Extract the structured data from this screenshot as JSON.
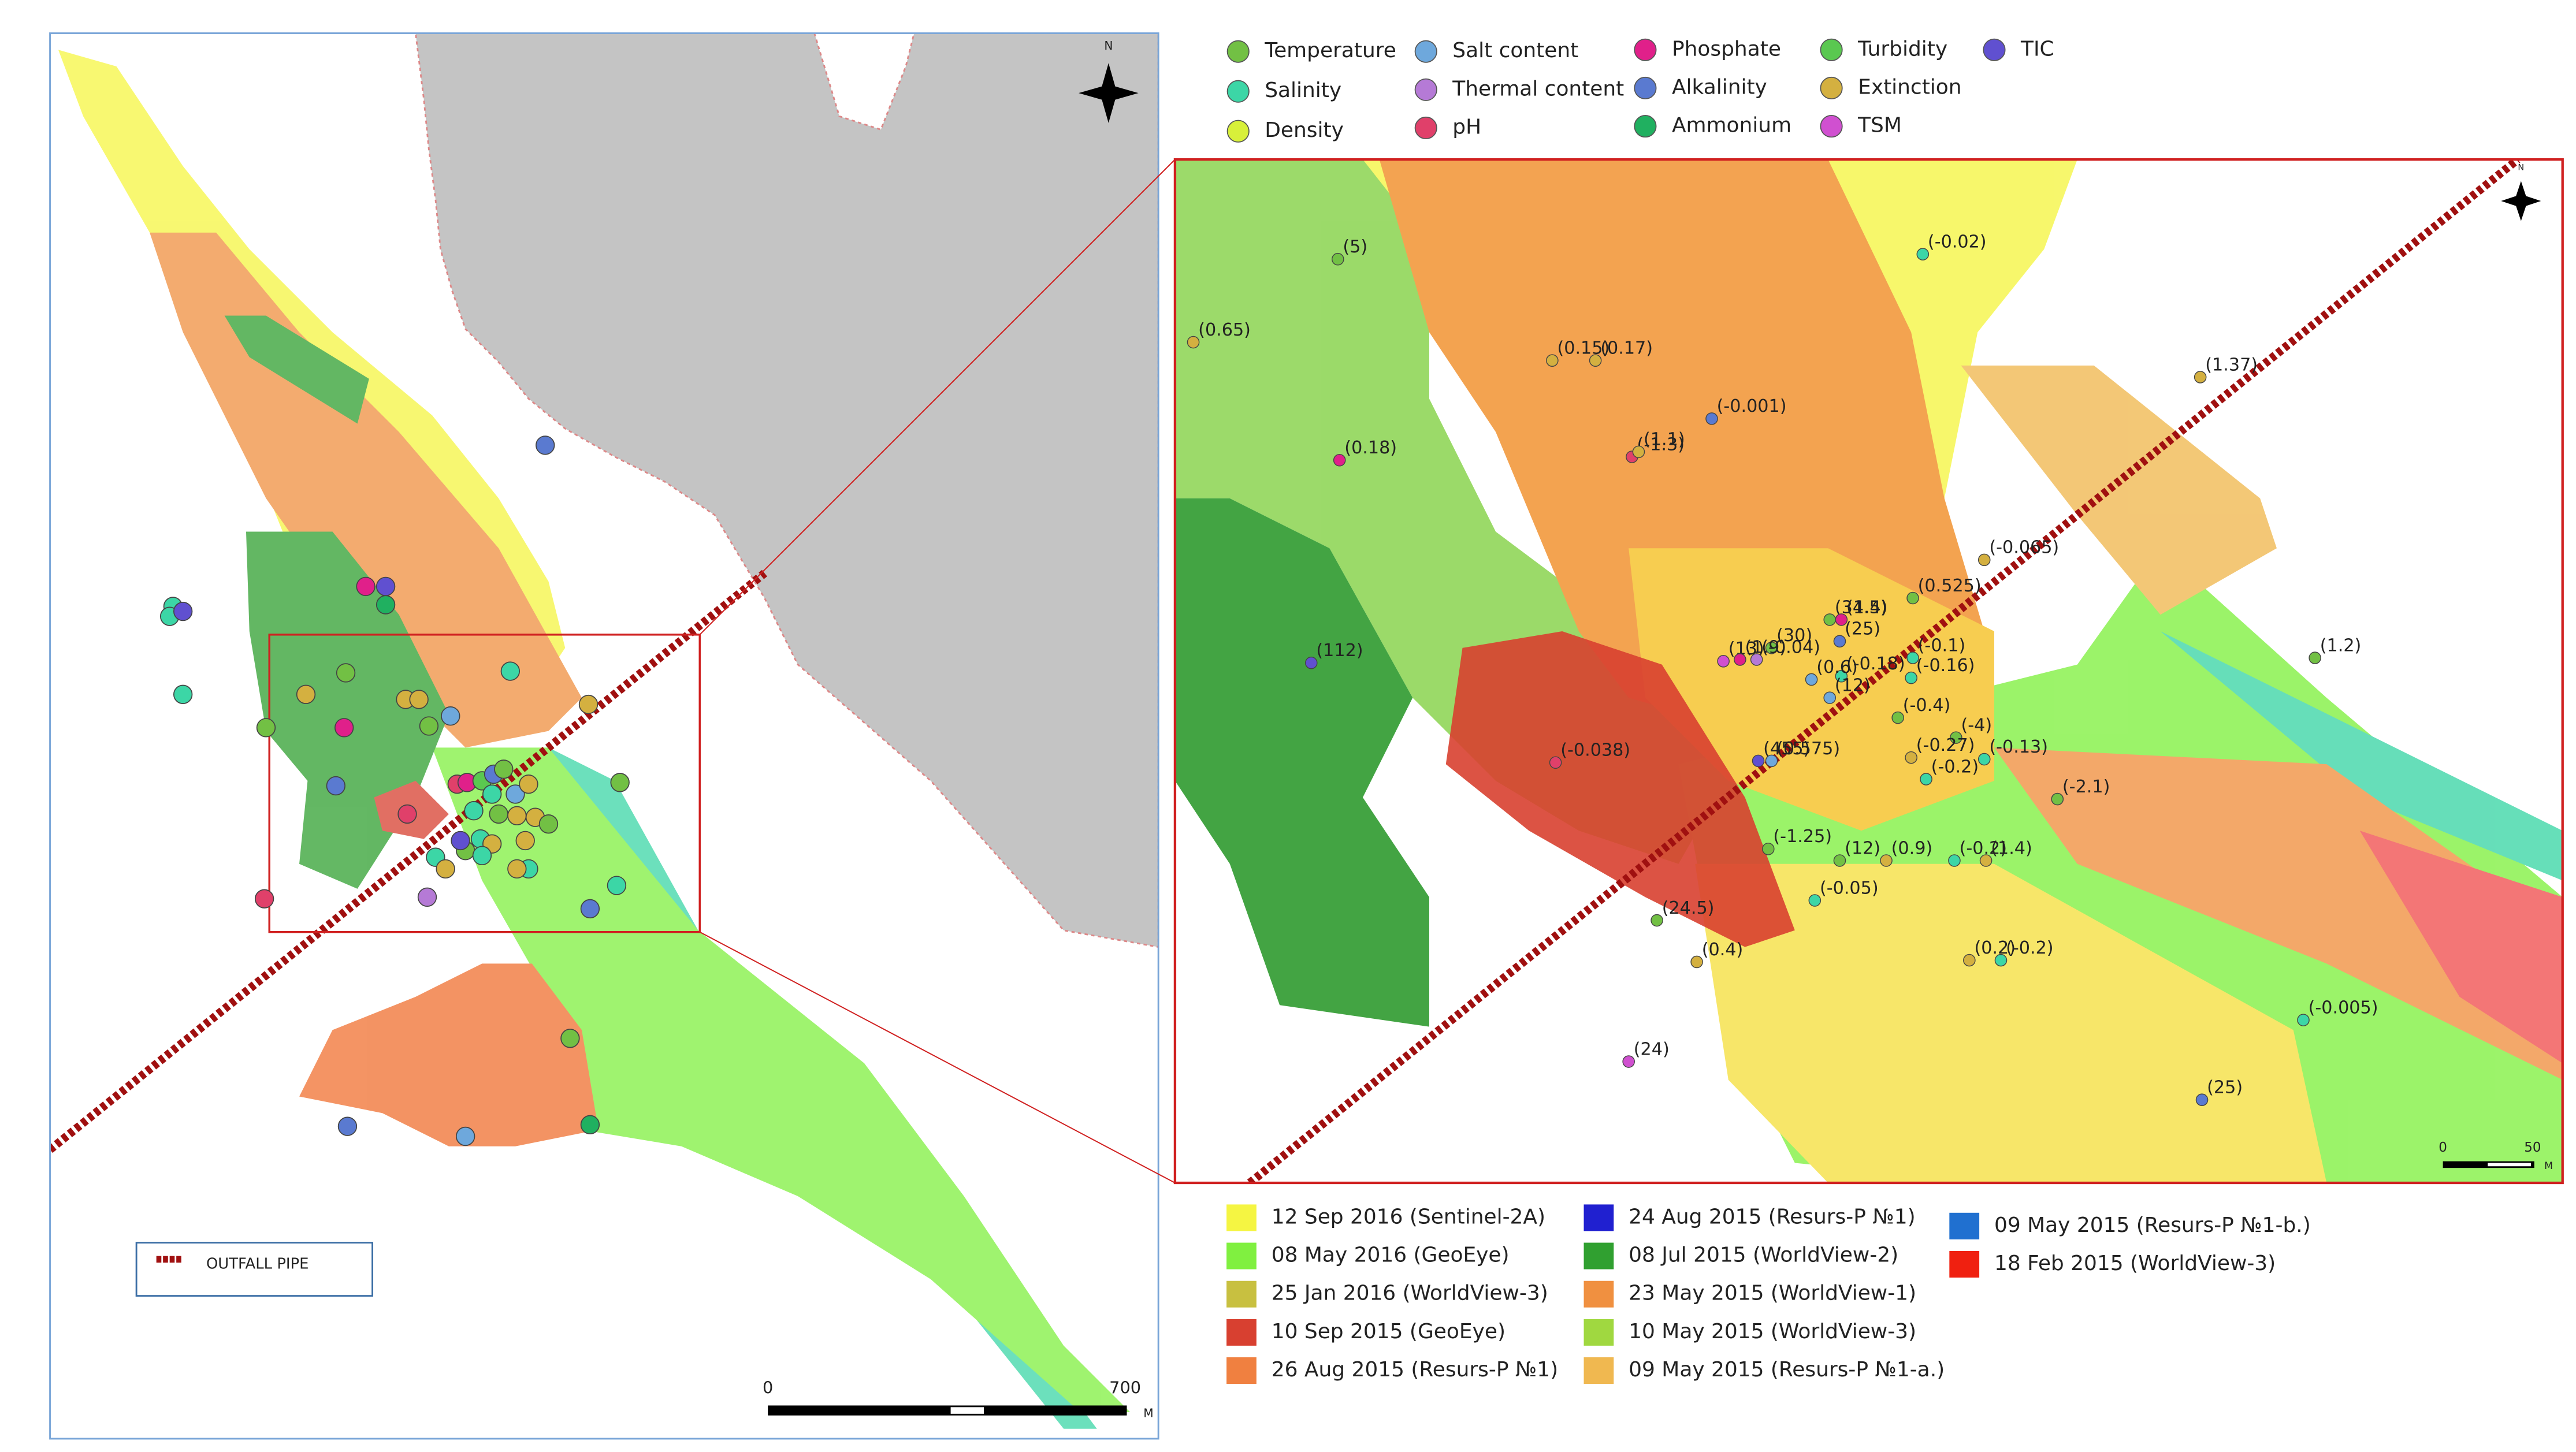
{
  "north": "N",
  "pipe_legend": "OUTFALL PIPE",
  "scale_overview": {
    "start": "0",
    "end": "700",
    "unit": "M"
  },
  "scale_inset": {
    "start": "0",
    "end": "50",
    "unit": "M"
  },
  "parameter_legend": [
    {
      "label": "Temperature",
      "color": "#72c044"
    },
    {
      "label": "Salinity",
      "color": "#3cd6a6"
    },
    {
      "label": "Density",
      "color": "#d8f03a"
    },
    {
      "label": "Salt content",
      "color": "#6ea8dc"
    },
    {
      "label": "Thermal content",
      "color": "#b57ad6"
    },
    {
      "label": "pH",
      "color": "#e0406a"
    },
    {
      "label": "Phosphate",
      "color": "#e0208a"
    },
    {
      "label": "Alkalinity",
      "color": "#5a7ad0"
    },
    {
      "label": "Ammonium",
      "color": "#20b060"
    },
    {
      "label": "Turbidity",
      "color": "#5ac850"
    },
    {
      "label": "Extinction",
      "color": "#d4b040"
    },
    {
      "label": "TSM",
      "color": "#d050d0"
    },
    {
      "label": "TIC",
      "color": "#6050d0"
    }
  ],
  "image_legend": [
    {
      "label": "12 Sep 2016 (Sentinel-2A)",
      "color": "#f5f542"
    },
    {
      "label": "08 May 2016 (GeoEye)",
      "color": "#80f040"
    },
    {
      "label": "25 Jan 2016 (WorldView-3)",
      "color": "#c8c040"
    },
    {
      "label": "10 Sep 2015 (GeoEye)",
      "color": "#d84030"
    },
    {
      "label": "26 Aug 2015 (Resurs-P №1)",
      "color": "#f08040"
    },
    {
      "label": "24 Aug 2015 (Resurs-P №1)",
      "color": "#2020d0"
    },
    {
      "label": "08 Jul 2015 (WorldView-2)",
      "color": "#30a030"
    },
    {
      "label": "23 May 2015 (WorldView-1)",
      "color": "#f09040"
    },
    {
      "label": "10 May 2015 (WorldView-3)",
      "color": "#a0d840"
    },
    {
      "label": "09 May 2015 (Resurs-P №1-a.)",
      "color": "#f0b850"
    },
    {
      "label": "09 May 2015 (Resurs-P №1-b.)",
      "color": "#2070d0"
    },
    {
      "label": "18 Feb 2015 (WorldView-3)",
      "color": "#f02010"
    }
  ],
  "point_labels": [
    "(5)",
    "(0.65)",
    "(0.15)",
    "(0.17)",
    "(-0.001)",
    "(-0.02)",
    "(1.37)",
    "(0.18)",
    "(-1.3)",
    "(1.1)",
    "(0.525)",
    "(-0.065)",
    "(34.5)",
    "(1.4)",
    "(25)",
    "(-0.1)",
    "(1.2)",
    "(112)",
    "(13)",
    "(30)",
    "(1.9)",
    "(-0.04)",
    "(-0.18)",
    "(-0.16)",
    "(0.6)",
    "(12)",
    "(-0.4)",
    "(-4)",
    "(455)",
    "(0.575)",
    "(-0.27)",
    "(-0.2)",
    "(-0.13)",
    "(-0.038)",
    "(-2.1)",
    "(-1.25)",
    "(12)",
    "(0.9)",
    "(-0.2)",
    "(1.4)",
    "(-0.05)",
    "(24.5)",
    "(0.4)",
    "(0.2)",
    "(-0.2)",
    "(-0.005)",
    "(24)",
    "(25)"
  ]
}
